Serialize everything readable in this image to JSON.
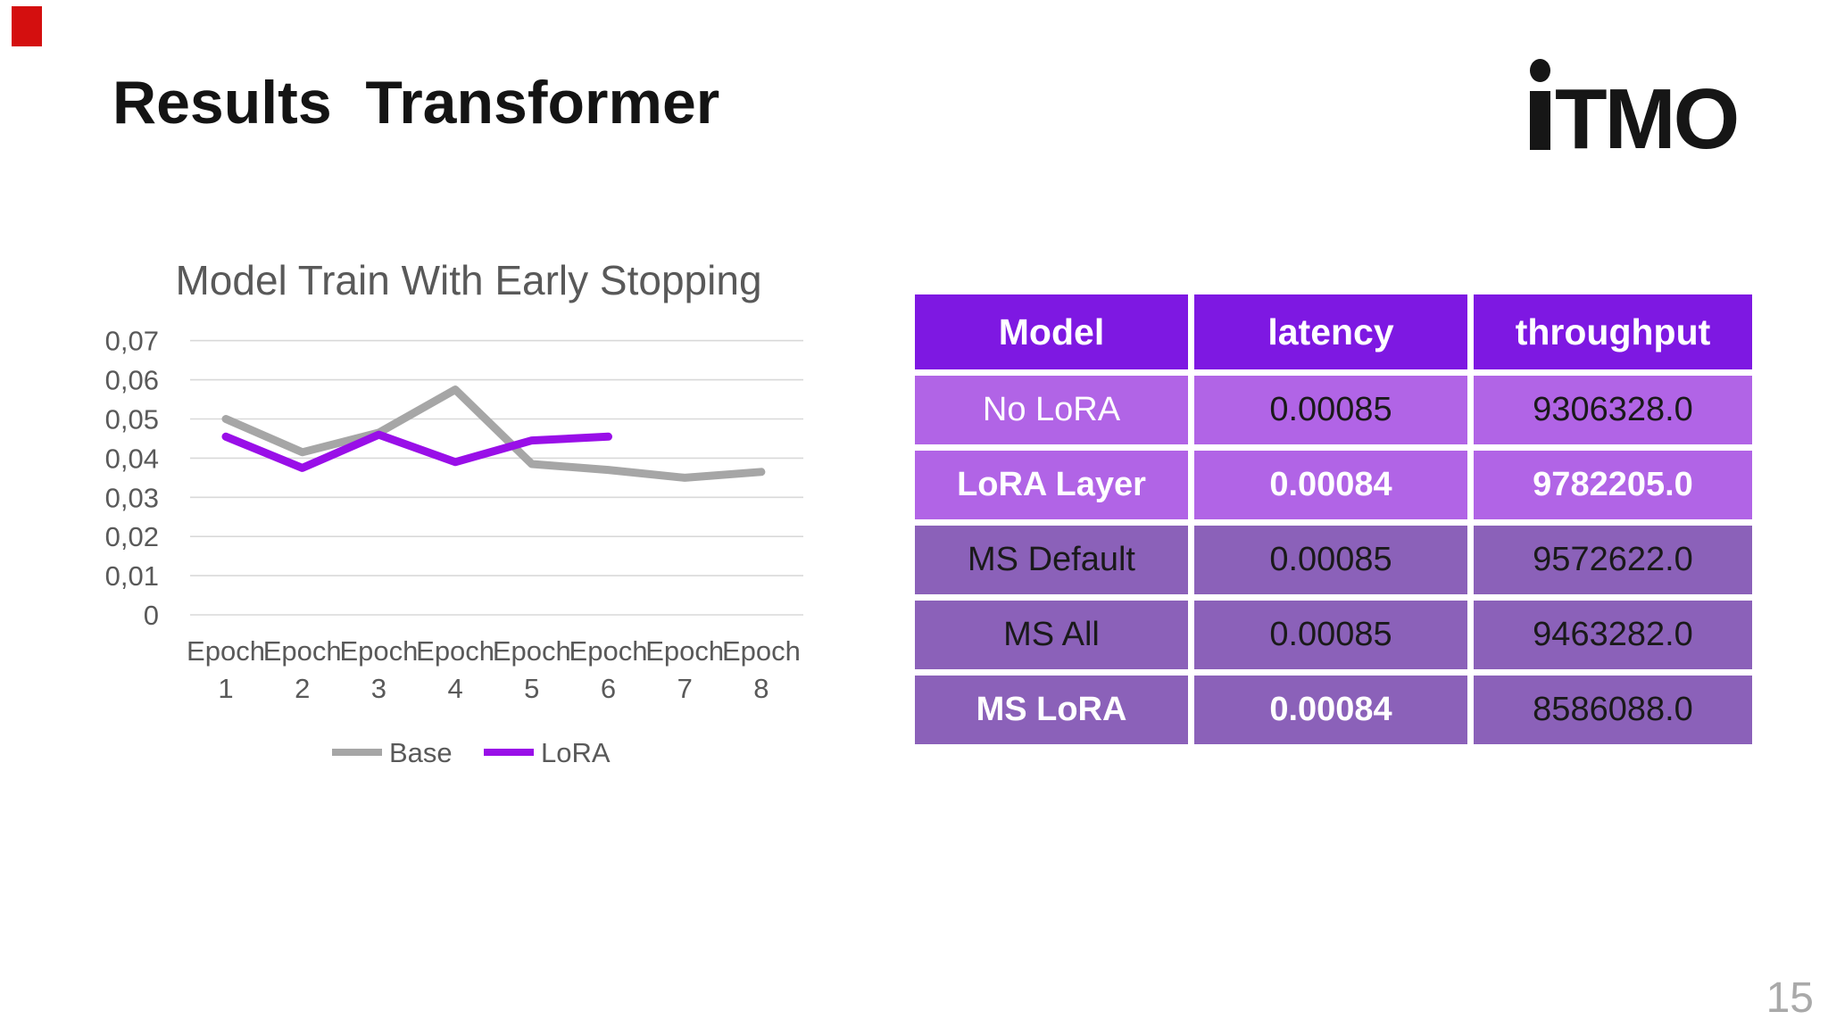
{
  "slide": {
    "title": "Results  Transformer",
    "logo_text": "iTMO",
    "page_number": "15"
  },
  "chart_data": {
    "type": "line",
    "title": "Model Train With Early Stopping",
    "title_color": "#595959",
    "categories": [
      "Epoch 1",
      "Epoch 2",
      "Epoch 3",
      "Epoch 4",
      "Epoch 5",
      "Epoch 6",
      "Epoch 7",
      "Epoch 8"
    ],
    "series": [
      {
        "name": "Base",
        "color": "#a6a6a6",
        "values": [
          0.05,
          0.0415,
          0.0465,
          0.0575,
          0.0385,
          0.037,
          0.035,
          0.0365
        ]
      },
      {
        "name": "LoRA",
        "color": "#990fe8",
        "values": [
          0.0455,
          0.0375,
          0.046,
          0.039,
          0.0445,
          0.0455,
          null,
          null
        ]
      }
    ],
    "ylim": [
      0,
      0.07
    ],
    "y_ticks": [
      {
        "v": 0.07,
        "label": "0,07"
      },
      {
        "v": 0.06,
        "label": "0,06"
      },
      {
        "v": 0.05,
        "label": "0,05"
      },
      {
        "v": 0.04,
        "label": "0,04"
      },
      {
        "v": 0.03,
        "label": "0,03"
      },
      {
        "v": 0.02,
        "label": "0,02"
      },
      {
        "v": 0.01,
        "label": "0,01"
      },
      {
        "v": 0,
        "label": "0"
      }
    ],
    "grid": true,
    "gridline_color": "#d9d9d9",
    "axis_text_color": "#595959",
    "legend_position": "bottom",
    "legend": [
      "Base",
      "LoRA"
    ]
  },
  "table": {
    "header_bg": "#7e18e2",
    "light_row_bg": "#b164e6",
    "dark_row_bg": "#8b61b9",
    "headers": [
      "Model",
      "latency",
      "throughput"
    ],
    "rows": [
      {
        "tone": "light",
        "cells": [
          {
            "text": "No LoRA",
            "color": "#ffffff",
            "bold": false
          },
          {
            "text": "0.00085",
            "color": "#1a1a1a",
            "bold": false
          },
          {
            "text": "9306328.0",
            "color": "#1a1a1a",
            "bold": false
          }
        ]
      },
      {
        "tone": "light",
        "cells": [
          {
            "text": "LoRA Layer",
            "color": "#ffffff",
            "bold": true
          },
          {
            "text": "0.00084",
            "color": "#ffffff",
            "bold": true
          },
          {
            "text": "9782205.0",
            "color": "#ffffff",
            "bold": true
          }
        ]
      },
      {
        "tone": "dark",
        "cells": [
          {
            "text": "MS Default",
            "color": "#1a1a1a",
            "bold": false
          },
          {
            "text": "0.00085",
            "color": "#1a1a1a",
            "bold": false
          },
          {
            "text": "9572622.0",
            "color": "#1a1a1a",
            "bold": false
          }
        ]
      },
      {
        "tone": "dark",
        "cells": [
          {
            "text": "MS All",
            "color": "#1a1a1a",
            "bold": false
          },
          {
            "text": "0.00085",
            "color": "#1a1a1a",
            "bold": false
          },
          {
            "text": "9463282.0",
            "color": "#1a1a1a",
            "bold": false
          }
        ]
      },
      {
        "tone": "dark",
        "cells": [
          {
            "text": "MS LoRA",
            "color": "#ffffff",
            "bold": true
          },
          {
            "text": "0.00084",
            "color": "#ffffff",
            "bold": true
          },
          {
            "text": "8586088.0",
            "color": "#1a1a1a",
            "bold": false
          }
        ]
      }
    ]
  }
}
